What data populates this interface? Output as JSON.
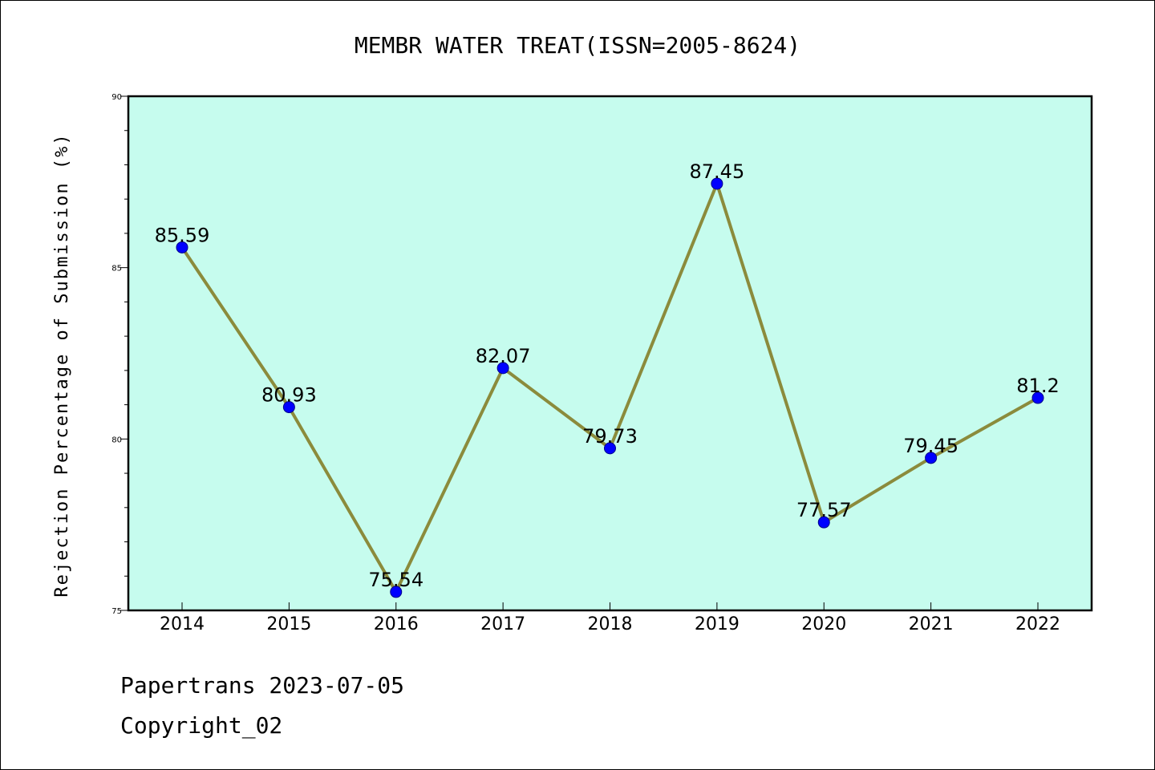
{
  "chart_data": {
    "type": "line",
    "title": "MEMBR WATER TREAT(ISSN=2005-8624)",
    "ylabel": "Rejection Percentage of Submission (%)",
    "xlabel": "",
    "categories": [
      "2014",
      "2015",
      "2016",
      "2017",
      "2018",
      "2019",
      "2020",
      "2021",
      "2022"
    ],
    "values": [
      85.59,
      80.93,
      75.54,
      82.07,
      79.73,
      87.45,
      77.57,
      79.45,
      81.2
    ],
    "value_labels": [
      "85.59",
      "80.93",
      "75.54",
      "82.07",
      "79.73",
      "87.45",
      "77.57",
      "79.45",
      "81.2"
    ],
    "ylim": [
      75,
      90
    ],
    "yticks": [
      75,
      80,
      85,
      90
    ],
    "ytick_labels": [
      "75",
      "80",
      "85",
      "90"
    ],
    "grid": false,
    "colors": {
      "plot_background": "#c6fcee",
      "line": "#8b8b3c",
      "marker": "#0000ff"
    }
  },
  "footer": {
    "line1": "Papertrans 2023-07-05",
    "line2": "Copyright_02"
  }
}
